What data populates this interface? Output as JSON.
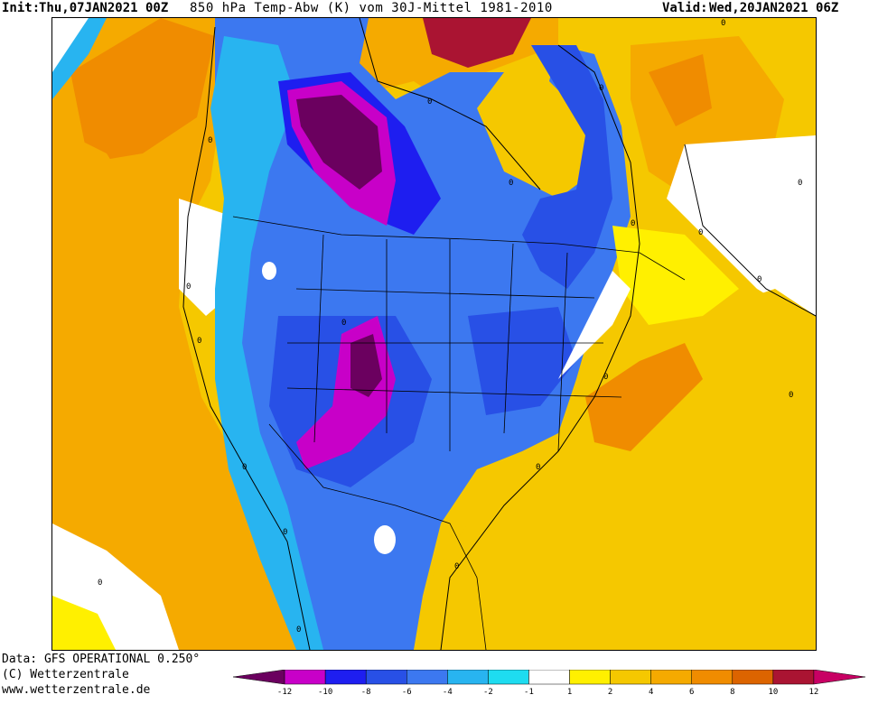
{
  "header": {
    "init_label": "Init:",
    "init_date": "Thu,07JAN2021 00Z",
    "title": "850 hPa Temp-Abw (K) vom 30J-Mittel 1981-2010",
    "valid_label": "Valid:",
    "valid_date": "Wed,20JAN2021 06Z"
  },
  "map": {
    "contour_labels": [
      "0",
      "0",
      "0",
      "0",
      "0",
      "0",
      "0",
      "0",
      "0",
      "0",
      "0",
      "0",
      "0",
      "0",
      "0",
      "0",
      "0",
      "0",
      "0",
      "0"
    ]
  },
  "footer": {
    "data_line": "Data: GFS OPERATIONAL 0.250°",
    "copyright_line": "(C) Wetterzentrale",
    "url_line": "www.wetterzentrale.de"
  },
  "legend": {
    "tick_labels": [
      "-12",
      "-10",
      "-8",
      "-6",
      "-4",
      "-2",
      "-1",
      "1",
      "2",
      "4",
      "6",
      "8",
      "10",
      "12"
    ],
    "colors": [
      "#6b005f",
      "#c800c8",
      "#1e1ef0",
      "#2850e6",
      "#3c78f0",
      "#28b4f0",
      "#1edcf0",
      "#ffffff",
      "#fff000",
      "#f5c800",
      "#f5aa00",
      "#f08c00",
      "#dc6400",
      "#aa1432",
      "#c80064"
    ]
  }
}
